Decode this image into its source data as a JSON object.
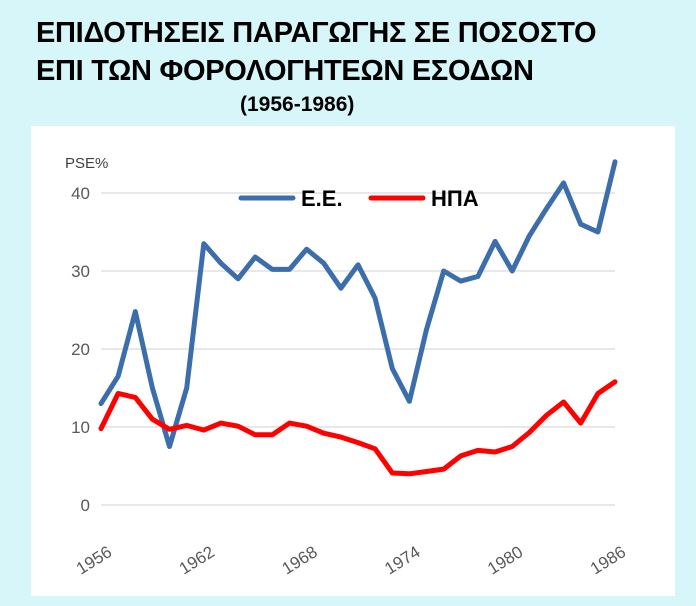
{
  "title_line1": "ΕΠΙΔΟΤΗΣΕΙΣ ΠΑΡΑΓΩΓΗΣ ΣΕ ΠΟΣΟΣΤΟ",
  "title_line2": "ΕΠΙ ΤΩΝ ΦΟΡΟΛΟΓΗΤΕΩΝ ΕΣΟΔΩΝ",
  "subtitle": "(1956-1986)",
  "chart_data": {
    "type": "line",
    "ylabel": "PSE%",
    "ylim": [
      0,
      45
    ],
    "yticks": [
      0,
      10,
      20,
      30,
      40
    ],
    "xlim": [
      1956,
      1986
    ],
    "xticks": [
      1956,
      1962,
      1968,
      1974,
      1980,
      1986
    ],
    "grid": true,
    "legend_position": "top",
    "x": [
      1956,
      1957,
      1958,
      1959,
      1960,
      1961,
      1962,
      1963,
      1964,
      1965,
      1966,
      1967,
      1968,
      1969,
      1970,
      1971,
      1972,
      1973,
      1974,
      1975,
      1976,
      1977,
      1978,
      1979,
      1980,
      1981,
      1982,
      1983,
      1984,
      1985,
      1986
    ],
    "series": [
      {
        "name": "Ε.Ε.",
        "color": "#3c6eab",
        "values": [
          13,
          16.5,
          24.8,
          15,
          7.5,
          15,
          33.5,
          31,
          29,
          31.8,
          30.2,
          30.2,
          32.8,
          31,
          27.8,
          30.8,
          26.5,
          17.5,
          13.3,
          22.5,
          30,
          28.7,
          29.3,
          33.8,
          30,
          34.5,
          38,
          41.3,
          36,
          35,
          44
        ]
      },
      {
        "name": "ΗΠΑ",
        "color": "#ff0000",
        "values": [
          9.8,
          14.3,
          13.8,
          11,
          9.7,
          10.2,
          9.6,
          10.5,
          10.1,
          9,
          9,
          10.5,
          10.1,
          9.2,
          8.7,
          8,
          7.2,
          4.1,
          4,
          4.3,
          4.6,
          6.3,
          7,
          6.8,
          7.5,
          9.3,
          11.5,
          13.2,
          10.5,
          14.3,
          15.8
        ]
      }
    ]
  }
}
